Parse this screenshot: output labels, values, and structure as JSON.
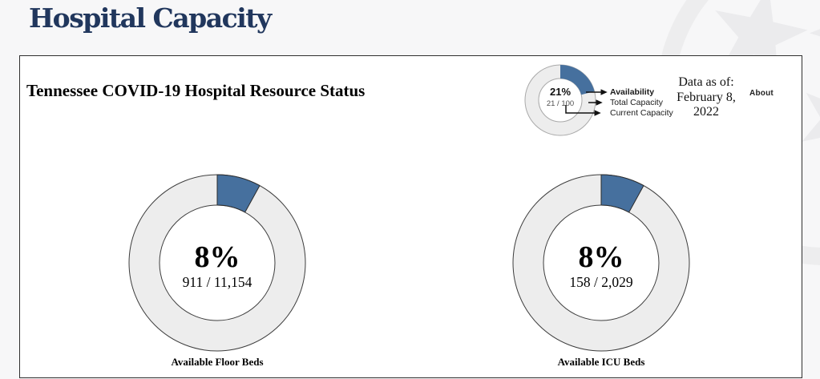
{
  "page": {
    "title": "Hospital Capacity"
  },
  "card": {
    "title": "Tennessee COVID-19 Hospital Resource Status",
    "data_as_of": {
      "label": "Data as of:",
      "date_line1": "February 8,",
      "date_line2": "2022"
    },
    "about_label": "About"
  },
  "legend": {
    "percent_label": "21%",
    "percent_value": 21,
    "ratio_label": "21 / 100",
    "items": [
      {
        "label": "Availability"
      },
      {
        "label": "Total Capacity"
      },
      {
        "label": "Current Capacity"
      }
    ]
  },
  "colors": {
    "accent_blue": "#46709e",
    "track_gray": "#ededed",
    "navy_title": "#21375d",
    "page_background": "#f7f7f8",
    "watermark_gray": "#ebebed"
  },
  "chart_data": [
    {
      "type": "pie",
      "title": "Available Floor Beds",
      "percent": 8,
      "percent_label": "8%",
      "available": 911,
      "total": 11154,
      "ratio_label": "911 / 11,154",
      "legend_position": "top-right",
      "segment_start": "12-o-clock-clockwise"
    },
    {
      "type": "pie",
      "title": "Available ICU Beds",
      "percent": 8,
      "percent_label": "8%",
      "available": 158,
      "total": 2029,
      "ratio_label": "158 / 2,029",
      "legend_position": "top-right",
      "segment_start": "12-o-clock-clockwise"
    }
  ]
}
